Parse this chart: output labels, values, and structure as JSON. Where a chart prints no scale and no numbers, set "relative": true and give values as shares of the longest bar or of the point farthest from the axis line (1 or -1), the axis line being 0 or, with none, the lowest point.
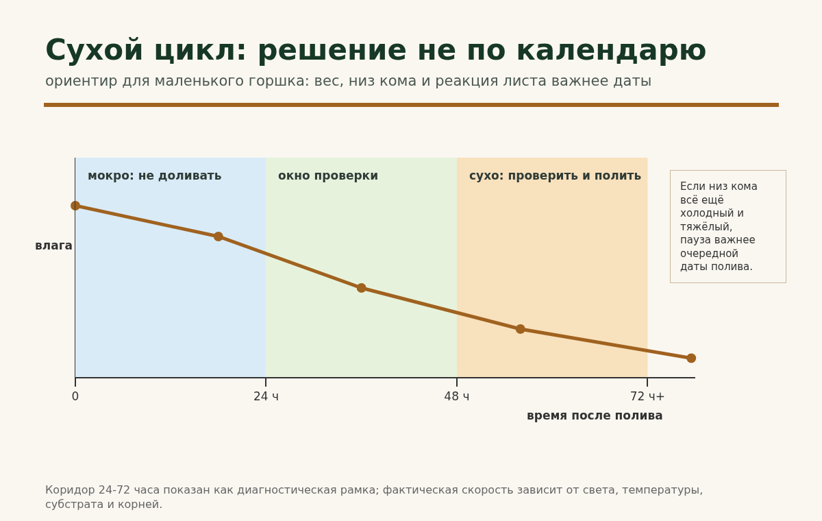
{
  "chart_data": {
    "type": "line",
    "title": "Сухой цикл: решение не по календарю",
    "subtitle": "ориентир для маленького горшка: вес, низ кома и реакция листа важнее даты",
    "xlabel": "время после полива",
    "ylabel": "влага",
    "relative": true,
    "x": [
      0,
      18,
      36,
      56,
      77.5
    ],
    "series": [
      {
        "color": "#a0621f",
        "values": [
          1.0,
          0.82,
          0.52,
          0.28,
          0.11
        ]
      }
    ],
    "xlim": [
      0,
      78
    ],
    "xticks": [
      {
        "value": 0,
        "label": "0"
      },
      {
        "value": 24,
        "label": "24 ч"
      },
      {
        "value": 48,
        "label": "48 ч"
      },
      {
        "value": 72,
        "label": "72 ч+"
      }
    ],
    "bands": [
      {
        "axis": "x",
        "from": 0,
        "to": 24,
        "label": "мокро: не доливать",
        "color": "#d9ebf7"
      },
      {
        "axis": "x",
        "from": 24,
        "to": 48,
        "label": "окно проверки",
        "color": "#e6f2dc"
      },
      {
        "axis": "x",
        "from": 48,
        "to": 72,
        "label": "сухо: проверить и полить",
        "color": "#f8e1bd"
      }
    ],
    "annotations": [
      "Если низ кома всё ещё холодный и тяжёлый, пауза важнее очередной даты полива.",
      "Коридор 24-72 часа показан как диагностическая рамка; фактическая скорость зависит от света, температуры, субстрата и корней."
    ],
    "grid": false,
    "marker": "circle",
    "line_style": "solid"
  }
}
